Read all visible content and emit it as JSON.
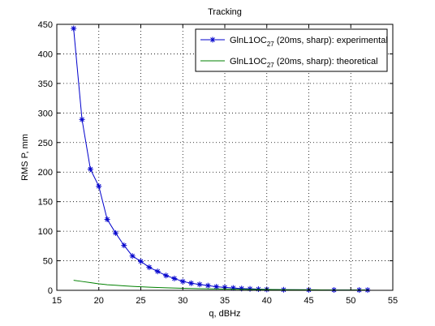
{
  "chart_data": {
    "type": "line",
    "title": "Tracking",
    "xlabel": "q, dBHz",
    "ylabel": "RMS P, mm",
    "xlim": [
      15,
      55
    ],
    "ylim": [
      0,
      450
    ],
    "xticks": [
      15,
      20,
      25,
      30,
      35,
      40,
      45,
      50,
      55
    ],
    "yticks": [
      0,
      50,
      100,
      150,
      200,
      250,
      300,
      350,
      400,
      450
    ],
    "grid": true,
    "legend_position": "top-right",
    "series": [
      {
        "name": "GlnL1OC",
        "name_subscript": "27",
        "name_suffix": " (20ms, sharp): experimental",
        "color": "#0000cc",
        "marker": "asterisk",
        "x": [
          17,
          18,
          19,
          20,
          21,
          22,
          23,
          24,
          25,
          26,
          27,
          28,
          29,
          30,
          31,
          32,
          33,
          34,
          35,
          36,
          37,
          38,
          39,
          40,
          42,
          45,
          48,
          51,
          52
        ],
        "y": [
          443,
          289,
          205,
          176,
          120,
          97,
          76,
          58,
          49,
          39,
          32,
          25,
          20,
          15,
          12,
          10,
          8,
          6,
          5,
          4,
          3,
          2.5,
          2,
          1.5,
          1,
          0.8,
          0.6,
          0.5,
          0.5
        ]
      },
      {
        "name": "GlnL1OC",
        "name_subscript": "27",
        "name_suffix": " (20ms, sharp): theoretical",
        "color": "#008000",
        "marker": "none",
        "x": [
          17,
          18,
          19,
          20,
          21,
          22,
          23,
          24,
          25,
          26,
          28,
          30,
          32,
          34,
          36,
          38,
          40,
          42,
          45,
          48,
          51,
          52
        ],
        "y": [
          17,
          15,
          13,
          11,
          9.5,
          8.5,
          7.5,
          6.7,
          6,
          5.3,
          4.3,
          3.5,
          2.8,
          2.3,
          1.9,
          1.6,
          1.3,
          1.1,
          0.8,
          0.6,
          0.5,
          0.45
        ]
      }
    ]
  }
}
